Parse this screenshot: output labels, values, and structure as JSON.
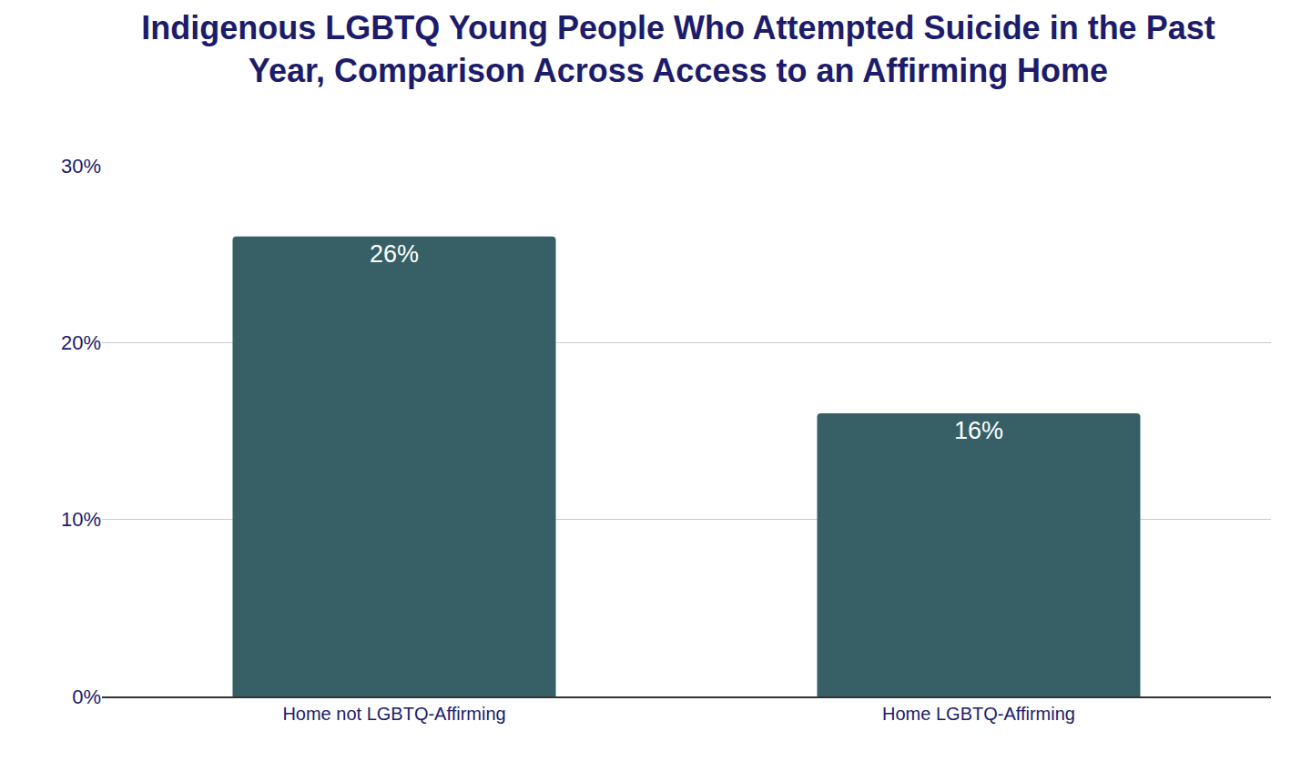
{
  "chart_data": {
    "type": "bar",
    "title": "Indigenous LGBTQ Young People Who Attempted Suicide in the Past Year, Comparison Across Access to an Affirming Home",
    "categories": [
      "Home not LGBTQ-Affirming",
      "Home LGBTQ-Affirming"
    ],
    "values": [
      26,
      16
    ],
    "value_labels": [
      "26%",
      "16%"
    ],
    "color": "#375f66",
    "ylim": [
      0,
      30
    ],
    "yticks": [
      {
        "value": 0,
        "label": "0%"
      },
      {
        "value": 10,
        "label": "10%"
      },
      {
        "value": 20,
        "label": "20%"
      },
      {
        "value": 30,
        "label": "30%"
      }
    ],
    "grid": true,
    "data_labels": true
  }
}
